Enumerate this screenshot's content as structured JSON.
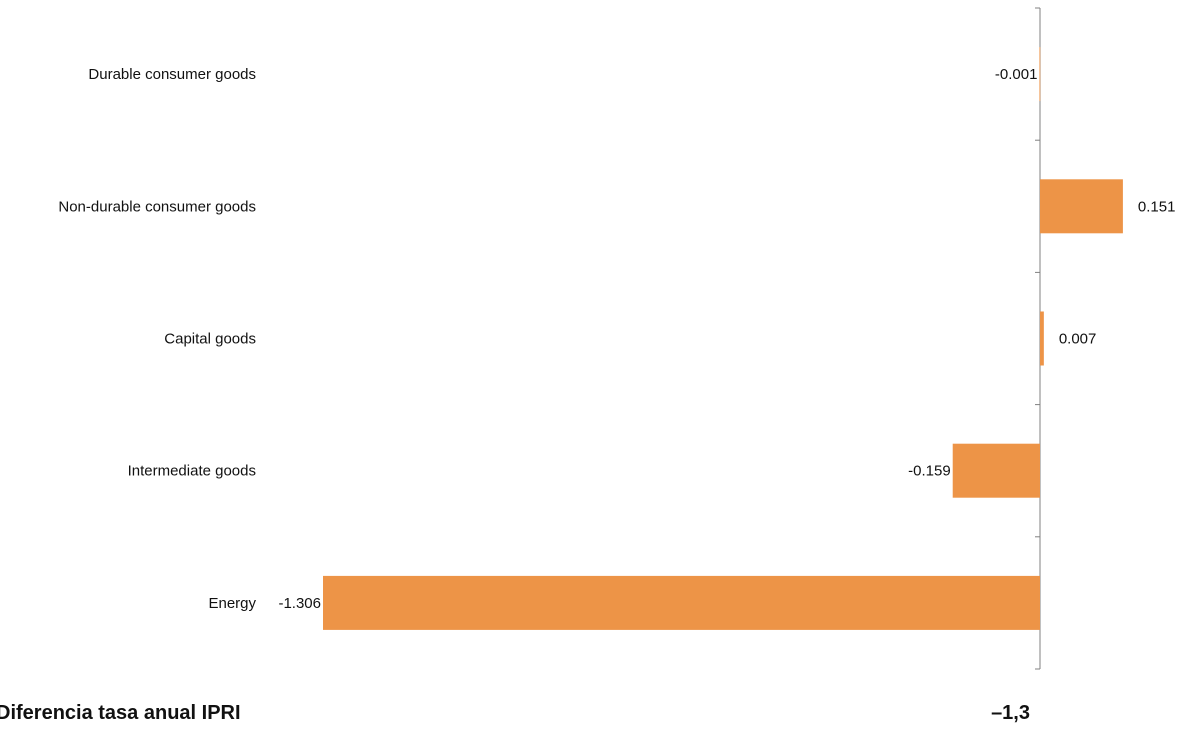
{
  "chart_data": {
    "type": "bar",
    "orientation": "horizontal",
    "categories": [
      "Durable consumer goods",
      "Non-durable consumer goods",
      "Capital goods",
      "Intermediate goods",
      "Energy"
    ],
    "values": [
      -0.001,
      0.151,
      0.007,
      -0.159,
      -1.306
    ],
    "value_labels": [
      "-0.001",
      "0.151",
      "0.007",
      "-0.159",
      "-1.306"
    ],
    "bar_color": "#ED9447",
    "axis_color": "#808080",
    "grid": false,
    "legend": "none"
  },
  "footer": {
    "label": "Diferencia tasa anual IPRI",
    "value": "–1,3"
  }
}
